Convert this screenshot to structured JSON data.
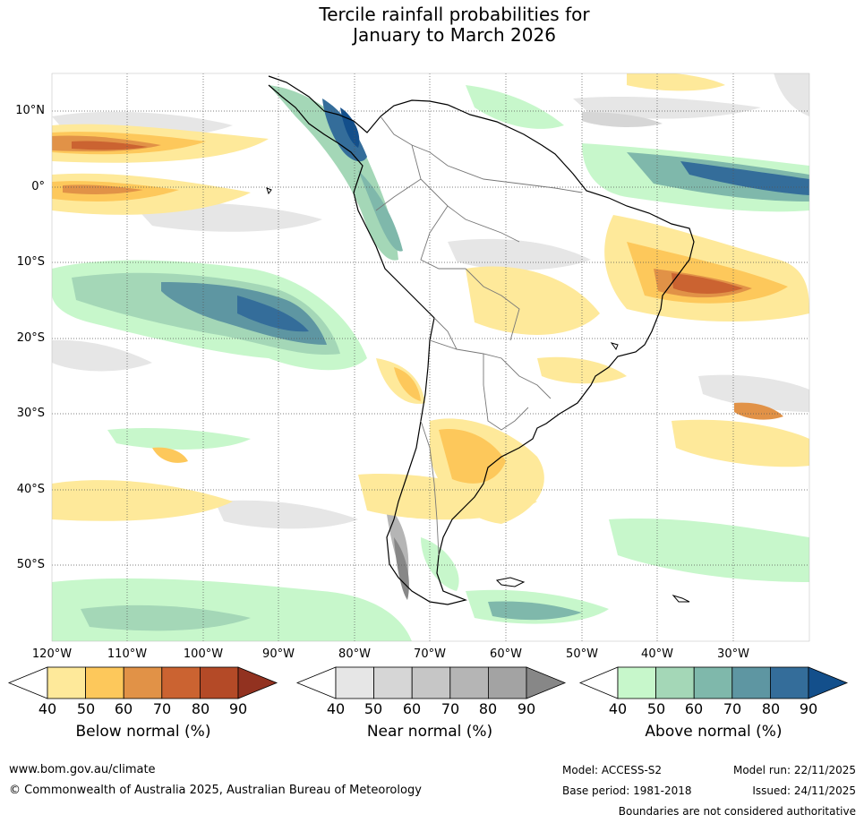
{
  "title": {
    "line1": "Tercile rainfall probabilities for",
    "line2": "January to March 2026"
  },
  "map": {
    "lat_labels": [
      "10°N",
      "0°",
      "10°S",
      "20°S",
      "30°S",
      "40°S",
      "50°S"
    ],
    "lon_labels": [
      "120°W",
      "110°W",
      "100°W",
      "90°W",
      "80°W",
      "70°W",
      "60°W",
      "50°W",
      "40°W",
      "30°W"
    ]
  },
  "colorbars": [
    {
      "name": "below",
      "title": "Below normal (%)",
      "ticks": [
        "40",
        "50",
        "60",
        "70",
        "80",
        "90"
      ],
      "colors": [
        "#ffffff",
        "#fee99a",
        "#fdc85b",
        "#e19247",
        "#cb6331",
        "#b44a27",
        "#923220"
      ]
    },
    {
      "name": "near",
      "title": "Near normal (%)",
      "ticks": [
        "40",
        "50",
        "60",
        "70",
        "80",
        "90"
      ],
      "colors": [
        "#ffffff",
        "#e6e6e6",
        "#d6d6d6",
        "#c6c6c6",
        "#b5b5b5",
        "#a3a3a3",
        "#878787"
      ]
    },
    {
      "name": "above",
      "title": "Above normal (%)",
      "ticks": [
        "40",
        "50",
        "60",
        "70",
        "80",
        "90"
      ],
      "colors": [
        "#ffffff",
        "#c7f7cb",
        "#a4d7b7",
        "#7fb8ab",
        "#5e96a2",
        "#346d9a",
        "#134f8b"
      ]
    }
  ],
  "footer": {
    "url": "www.bom.gov.au/climate",
    "copyright": "© Commonwealth of Australia 2025, Australian Bureau of Meteorology",
    "model": "Model: ACCESS-S2",
    "base_period": "Base period: 1981-2018",
    "model_run": "Model run: 22/11/2025",
    "issued": "Issued: 24/11/2025",
    "disclaimer": "Boundaries are not considered authoritative"
  }
}
